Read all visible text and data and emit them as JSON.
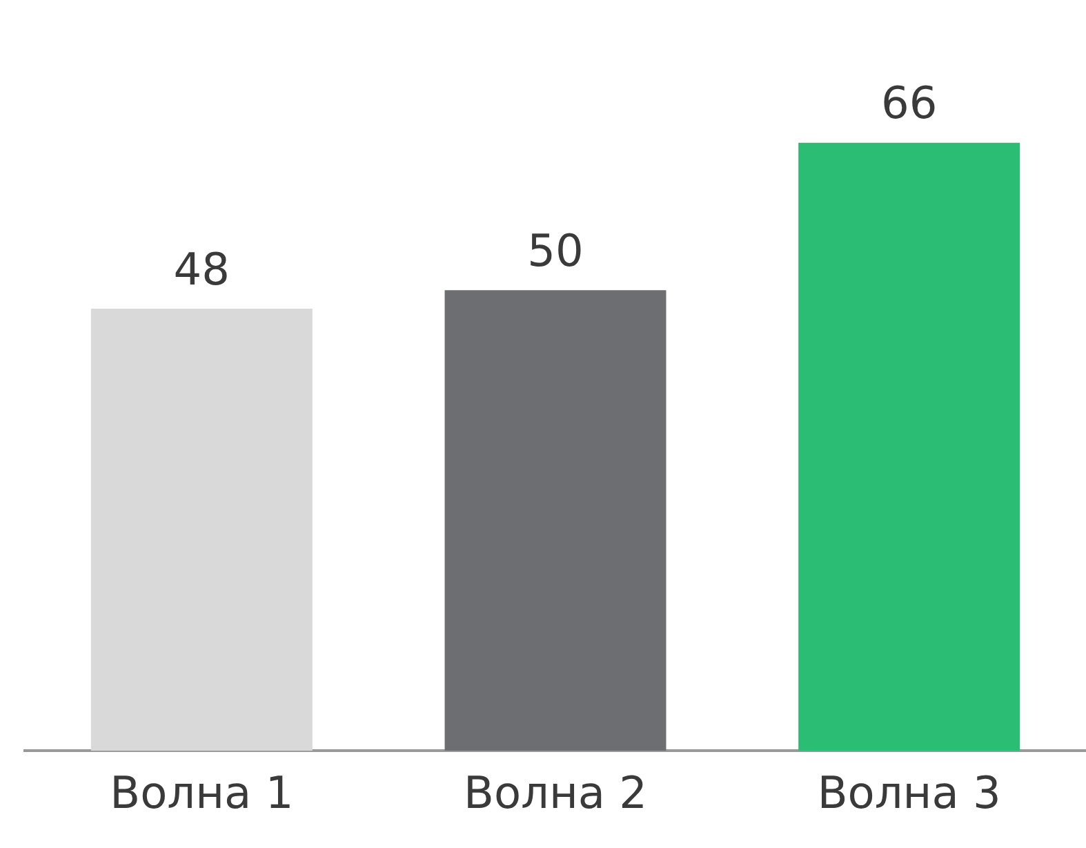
{
  "chart_data": {
    "type": "bar",
    "categories": [
      "Волна 1",
      "Волна 2",
      "Волна 3"
    ],
    "values": [
      48,
      50,
      66
    ],
    "colors": [
      "#d9d9d9",
      "#6d6e71",
      "#2bbd73"
    ],
    "data_labels": true,
    "grid": false,
    "legend": false
  }
}
